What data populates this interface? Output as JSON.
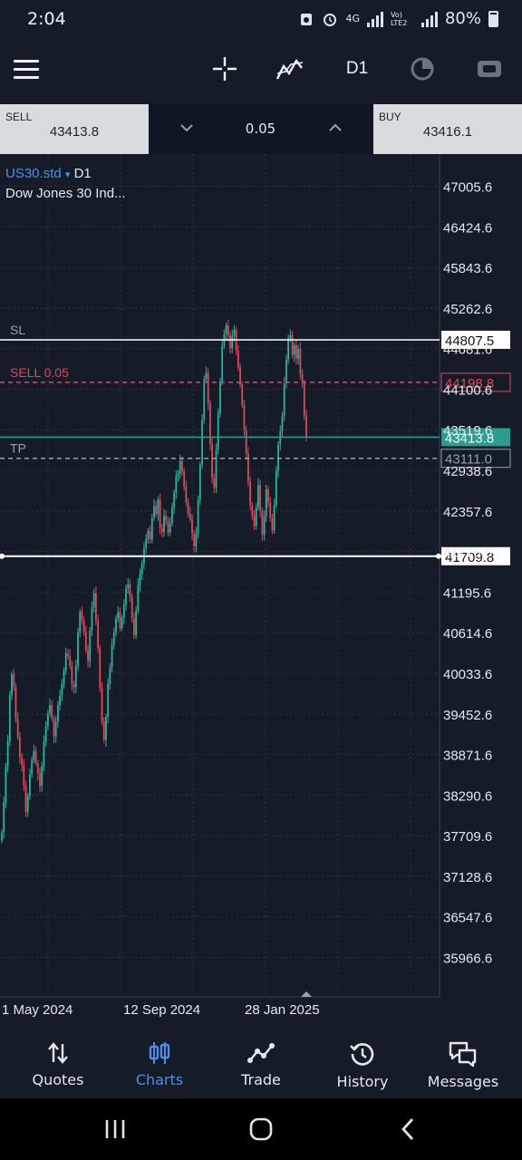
{
  "status_bar": {
    "time": "2:04",
    "network": "4G",
    "volte": "Vo) LTE2",
    "battery": "80%"
  },
  "toolbar": {
    "timeframe": "D1"
  },
  "trade": {
    "sell_label": "SELL",
    "sell_price": "43413.8",
    "volume": "0.05",
    "buy_label": "BUY",
    "buy_price": "43416.1"
  },
  "chart_header": {
    "symbol": "US30.std",
    "dropdown_glyph": "▾",
    "timeframe": "D1",
    "instrument_name": "Dow Jones 30 Ind..."
  },
  "chart_data": {
    "type": "candlestick",
    "symbol": "US30.std",
    "timeframe": "D1",
    "y_ticks": [
      "47005.6",
      "46424.6",
      "45843.6",
      "45262.6",
      "44681.6",
      "44100.6",
      "43519.6",
      "42938.6",
      "42357.6",
      "41776.6",
      "41195.6",
      "40614.6",
      "40033.6",
      "39452.6",
      "38871.6",
      "38290.6",
      "37709.6",
      "37128.6",
      "36547.6",
      "35966.6"
    ],
    "ylim": [
      35500,
      47300
    ],
    "x_ticks": [
      "1 May 2024",
      "12 Sep 2024",
      "28 Jan 2025"
    ],
    "lines": [
      {
        "name": "SL",
        "price": 44807.5,
        "label": "44807.5",
        "style": "solid",
        "color": "#ffffff"
      },
      {
        "name": "SELL 0.05",
        "price": 44198.8,
        "label": "44198.8",
        "style": "dashed",
        "color": "#e0475a"
      },
      {
        "name": "bid",
        "price": 43413.8,
        "label": "43413.8",
        "style": "solid",
        "color": "#2a9d8f"
      },
      {
        "name": "TP",
        "price": 43111.0,
        "label": "43111.0",
        "style": "dashed",
        "color": "#9aa1ab"
      },
      {
        "name": "crosshair",
        "price": 41709.8,
        "label": "41709.8",
        "style": "solid",
        "color": "#ffffff"
      }
    ],
    "closes": [
      37760,
      38190,
      38700,
      39060,
      39720,
      40020,
      39840,
      39380,
      39120,
      38840,
      38720,
      38430,
      38050,
      38280,
      38590,
      38790,
      38920,
      38750,
      38600,
      38420,
      38710,
      39050,
      39280,
      39460,
      39580,
      39390,
      39130,
      39340,
      39580,
      39710,
      39880,
      40070,
      40320,
      40280,
      40140,
      39880,
      39830,
      40140,
      40620,
      40910,
      40790,
      40620,
      40370,
      40210,
      40650,
      40980,
      41180,
      40790,
      40390,
      39820,
      39340,
      39080,
      39410,
      39880,
      40120,
      40440,
      40620,
      40820,
      40910,
      40680,
      40830,
      41020,
      41250,
      41310,
      41130,
      40820,
      40580,
      40930,
      41300,
      41460,
      41610,
      41820,
      41960,
      42070,
      41950,
      42260,
      42430,
      42310,
      42520,
      42110,
      42060,
      42290,
      42220,
      42050,
      42180,
      42410,
      42620,
      42860,
      42890,
      43070,
      42930,
      42710,
      42480,
      42320,
      42240,
      42030,
      41850,
      42040,
      42510,
      43020,
      43660,
      44240,
      44330,
      43900,
      43320,
      42830,
      42690,
      43230,
      43750,
      44210,
      44720,
      44890,
      45010,
      44870,
      44690,
      44860,
      44950,
      44650,
      44410,
      44170,
      43870,
      43520,
      43180,
      42780,
      42440,
      42290,
      42140,
      42410,
      42730,
      42360,
      42020,
      42280,
      42670,
      42480,
      42260,
      42080,
      42440,
      42930,
      43310,
      43500,
      43720,
      44180,
      44520,
      44830,
      44870,
      44590,
      44730,
      44540,
      44680,
      44320,
      44190,
      43720,
      43410
    ],
    "grid": true
  },
  "nav": {
    "quotes": "Quotes",
    "charts": "Charts",
    "trade": "Trade",
    "history": "History",
    "messages": "Messages"
  },
  "colors": {
    "bull": "#2bb3a0",
    "bear": "#e0475a",
    "accent": "#4d8fe8",
    "background": "#151c27"
  }
}
